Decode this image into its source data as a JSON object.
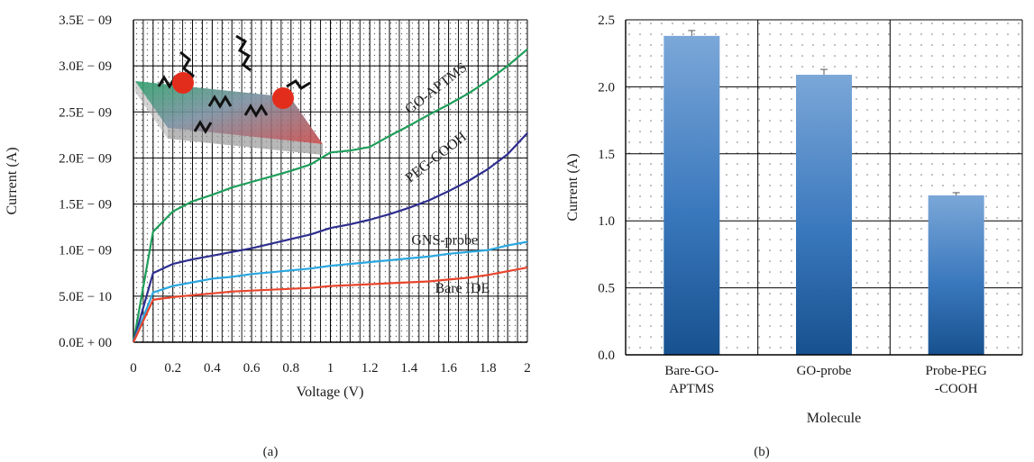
{
  "chart_data": [
    {
      "type": "line",
      "panel_label": "(a)",
      "xlabel": "Voltage (V)",
      "ylabel": "Current (A)",
      "xlim": [
        0,
        2
      ],
      "ylim": [
        0,
        3.5e-09
      ],
      "x_ticks": [
        "0",
        "0.2",
        "0.4",
        "0.6",
        "0.8",
        "1",
        "1.2",
        "1.4",
        "1.6",
        "1.8",
        "2"
      ],
      "y_ticks": [
        "0.0E + 00",
        "5.0E − 10",
        "1.0E − 09",
        "1.5E − 09",
        "2.0E − 09",
        "2.5E − 09",
        "3.0E − 09",
        "3.5E − 09"
      ],
      "grid": true,
      "series": [
        {
          "name": "GO-APTMS",
          "color": "#1e9e5a",
          "x": [
            0,
            0.1,
            0.2,
            0.3,
            0.4,
            0.5,
            0.6,
            0.7,
            0.8,
            0.9,
            1.0,
            1.1,
            1.2,
            1.3,
            1.4,
            1.5,
            1.6,
            1.7,
            1.8,
            1.9,
            2.0
          ],
          "y": [
            0,
            1.2e-09,
            1.42e-09,
            1.53e-09,
            1.6e-09,
            1.68e-09,
            1.74e-09,
            1.8e-09,
            1.86e-09,
            1.93e-09,
            2.06e-09,
            2.08e-09,
            2.12e-09,
            2.24e-09,
            2.35e-09,
            2.47e-09,
            2.58e-09,
            2.7e-09,
            2.84e-09,
            3e-09,
            3.18e-09
          ]
        },
        {
          "name": "PEG-COOH",
          "color": "#2e2e8f",
          "x": [
            0,
            0.1,
            0.2,
            0.3,
            0.4,
            0.5,
            0.6,
            0.7,
            0.8,
            0.9,
            1.0,
            1.1,
            1.2,
            1.3,
            1.4,
            1.5,
            1.6,
            1.7,
            1.8,
            1.9,
            2.0
          ],
          "y": [
            0,
            7.5e-10,
            8.5e-10,
            9e-10,
            9.4e-10,
            9.8e-10,
            1.02e-09,
            1.07e-09,
            1.12e-09,
            1.17e-09,
            1.24e-09,
            1.28e-09,
            1.33e-09,
            1.39e-09,
            1.46e-09,
            1.54e-09,
            1.64e-09,
            1.75e-09,
            1.88e-09,
            2.04e-09,
            2.27e-09
          ]
        },
        {
          "name": "GNS-probe",
          "color": "#2aa7e0",
          "x": [
            0,
            0.1,
            0.2,
            0.3,
            0.4,
            0.5,
            0.6,
            0.7,
            0.8,
            0.9,
            1.0,
            1.1,
            1.2,
            1.3,
            1.4,
            1.5,
            1.6,
            1.7,
            1.8,
            1.9,
            2.0
          ],
          "y": [
            0,
            5.4e-10,
            6.1e-10,
            6.5e-10,
            6.9e-10,
            7.1e-10,
            7.4e-10,
            7.6e-10,
            7.8e-10,
            8e-10,
            8.3e-10,
            8.5e-10,
            8.7e-10,
            8.9e-10,
            9.1e-10,
            9.3e-10,
            9.6e-10,
            9.8e-10,
            1e-09,
            1.05e-09,
            1.09e-09
          ]
        },
        {
          "name": "Bare IDE",
          "color": "#e8452c",
          "x": [
            0,
            0.1,
            0.2,
            0.3,
            0.4,
            0.5,
            0.6,
            0.7,
            0.8,
            0.9,
            1.0,
            1.1,
            1.2,
            1.3,
            1.4,
            1.5,
            1.6,
            1.7,
            1.8,
            1.9,
            2.0
          ],
          "y": [
            0,
            4.6e-10,
            4.9e-10,
            5.1e-10,
            5.3e-10,
            5.5e-10,
            5.6e-10,
            5.7e-10,
            5.8e-10,
            5.9e-10,
            6.1e-10,
            6.2e-10,
            6.3e-10,
            6.4e-10,
            6.5e-10,
            6.6e-10,
            6.8e-10,
            7e-10,
            7.3e-10,
            7.7e-10,
            8.1e-10
          ]
        }
      ],
      "line_labels": [
        {
          "text": "GO-APTMS",
          "x": 1.55,
          "y": 2.72e-09
        },
        {
          "text": "PEG-COOH",
          "x": 1.55,
          "y": 1.97e-09
        },
        {
          "text": "GNS-probe",
          "x": 1.58,
          "y": 1.06e-09
        },
        {
          "text": "Bare IDE",
          "x": 1.67,
          "y": 5.4e-10
        }
      ]
    },
    {
      "type": "bar",
      "panel_label": "(b)",
      "xlabel": "Molecule",
      "ylabel": "Current (A)",
      "ylim": [
        0,
        2.5
      ],
      "y_ticks": [
        "0.0",
        "0.5",
        "1.0",
        "1.5",
        "2.0",
        "2.5"
      ],
      "grid": true,
      "categories": [
        "Bare-GO-APTMS",
        "GO-probe",
        "Probe-PEG-COOH"
      ],
      "category_lines": [
        [
          "Bare-GO-",
          "APTMS"
        ],
        [
          "GO-probe"
        ],
        [
          "Probe-PEG",
          "-COOH"
        ]
      ],
      "values": [
        2.38,
        2.09,
        1.19
      ],
      "errors": [
        0.04,
        0.04,
        0.02
      ]
    }
  ]
}
